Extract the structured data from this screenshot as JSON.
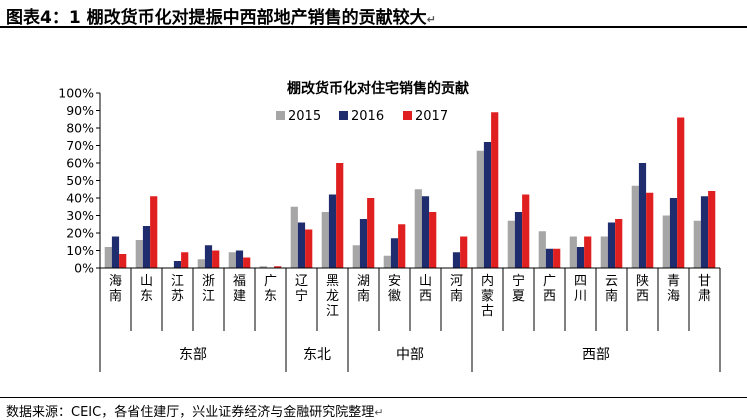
{
  "page": {
    "heading": "图表4：1 棚改货币化对提振中西部地产销售的贡献较大",
    "source": "数据来源：CEIC，各省住建厅，兴业证券经济与金融研究院整理",
    "return_mark": "↵"
  },
  "chart_data": {
    "type": "bar",
    "title": "棚改货币化对住宅销售的贡献",
    "xlabel": "",
    "ylabel": "",
    "ylim": [
      0,
      100
    ],
    "yticks": [
      "0%",
      "10%",
      "20%",
      "30%",
      "40%",
      "50%",
      "60%",
      "70%",
      "80%",
      "90%",
      "100%"
    ],
    "grid": false,
    "legend_position": "top-center",
    "categories": [
      "海南",
      "山东",
      "江苏",
      "浙江",
      "福建",
      "广东",
      "辽宁",
      "黑龙江",
      "湖南",
      "安徽",
      "山西",
      "河南",
      "内蒙古",
      "宁夏",
      "广西",
      "四川",
      "云南",
      "陕西",
      "青海",
      "甘肃"
    ],
    "groups": [
      {
        "label": "东部",
        "count": 6
      },
      {
        "label": "东北",
        "count": 2
      },
      {
        "label": "中部",
        "count": 4
      },
      {
        "label": "西部",
        "count": 8
      }
    ],
    "series": [
      {
        "name": "2015",
        "color": "#a6a6a6",
        "values": [
          12,
          16,
          0,
          5,
          9,
          1,
          35,
          32,
          13,
          7,
          45,
          0,
          67,
          27,
          21,
          18,
          18,
          47,
          30,
          27
        ]
      },
      {
        "name": "2016",
        "color": "#1f2d6e",
        "values": [
          18,
          24,
          4,
          13,
          10,
          0,
          26,
          42,
          28,
          17,
          41,
          9,
          72,
          32,
          11,
          12,
          26,
          60,
          40,
          41
        ]
      },
      {
        "name": "2017",
        "color": "#e02020",
        "values": [
          8,
          41,
          9,
          10,
          6,
          1,
          22,
          60,
          40,
          25,
          32,
          18,
          89,
          42,
          11,
          18,
          28,
          43,
          86,
          44
        ]
      }
    ]
  }
}
